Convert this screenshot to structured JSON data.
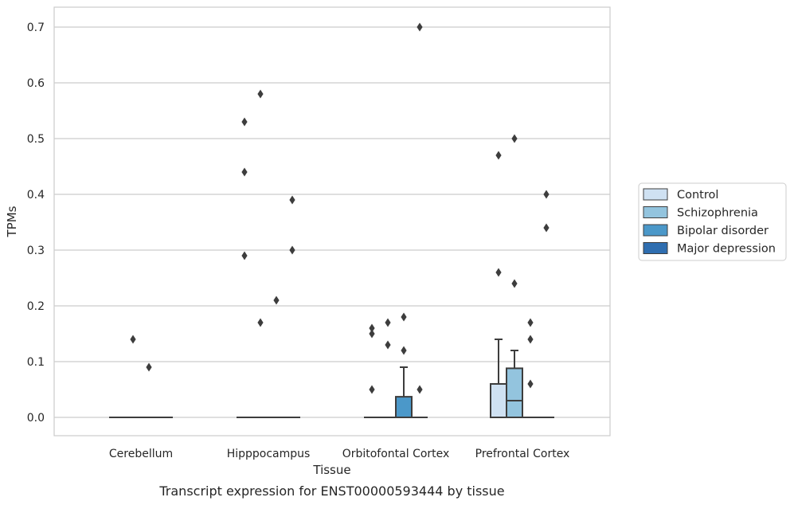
{
  "chart_data": {
    "type": "box",
    "title": "",
    "caption": "Transcript expression for ENST00000593444 by tissue",
    "xlabel": "Tissue",
    "ylabel": "TPMs",
    "ylim": [
      -0.035,
      0.735
    ],
    "yticks": [
      0.0,
      0.1,
      0.2,
      0.3,
      0.4,
      0.5,
      0.6,
      0.7
    ],
    "ytick_labels": [
      "0.0",
      "0.1",
      "0.2",
      "0.3",
      "0.4",
      "0.5",
      "0.6",
      "0.7"
    ],
    "grid": "y",
    "legend_position": "right",
    "categories": [
      "Cerebellum",
      "Hipppocampus",
      "Orbitofontal Cortex",
      "Prefrontal Cortex"
    ],
    "series": [
      {
        "name": "Control",
        "color": "#cfe1f2",
        "boxes": [
          {
            "q1": 0,
            "median": 0,
            "q3": 0,
            "whisker_low": 0,
            "whisker_high": 0,
            "outliers": []
          },
          {
            "q1": 0,
            "median": 0,
            "q3": 0,
            "whisker_low": 0,
            "whisker_high": 0,
            "outliers": [
              0.53,
              0.44,
              0.29
            ]
          },
          {
            "q1": 0,
            "median": 0,
            "q3": 0,
            "whisker_low": 0,
            "whisker_high": 0,
            "outliers": [
              0.16,
              0.15,
              0.05
            ]
          },
          {
            "q1": 0,
            "median": 0,
            "q3": 0.06,
            "whisker_low": 0,
            "whisker_high": 0.14,
            "outliers": [
              0.47,
              0.26
            ]
          }
        ]
      },
      {
        "name": "Schizophrenia",
        "color": "#93c4de",
        "boxes": [
          {
            "q1": 0,
            "median": 0,
            "q3": 0,
            "whisker_low": 0,
            "whisker_high": 0,
            "outliers": [
              0.14
            ]
          },
          {
            "q1": 0,
            "median": 0,
            "q3": 0,
            "whisker_low": 0,
            "whisker_high": 0,
            "outliers": [
              0.58,
              0.17
            ]
          },
          {
            "q1": 0,
            "median": 0,
            "q3": 0,
            "whisker_low": 0,
            "whisker_high": 0,
            "outliers": [
              0.17,
              0.13
            ]
          },
          {
            "q1": 0,
            "median": 0.03,
            "q3": 0.088,
            "whisker_low": 0,
            "whisker_high": 0.12,
            "outliers": [
              0.5,
              0.24
            ]
          }
        ]
      },
      {
        "name": "Bipolar disorder",
        "color": "#4b98c9",
        "boxes": [
          {
            "q1": 0,
            "median": 0,
            "q3": 0,
            "whisker_low": 0,
            "whisker_high": 0,
            "outliers": [
              0.09
            ]
          },
          {
            "q1": 0,
            "median": 0,
            "q3": 0,
            "whisker_low": 0,
            "whisker_high": 0,
            "outliers": [
              0.21
            ]
          },
          {
            "q1": 0,
            "median": 0,
            "q3": 0.037,
            "whisker_low": 0,
            "whisker_high": 0.09,
            "outliers": [
              0.18,
              0.12
            ]
          },
          {
            "q1": 0,
            "median": 0,
            "q3": 0,
            "whisker_low": 0,
            "whisker_high": 0,
            "outliers": [
              0.17,
              0.14,
              0.06
            ]
          }
        ]
      },
      {
        "name": "Major depression",
        "color": "#2f6eb0",
        "boxes": [
          {
            "q1": 0,
            "median": 0,
            "q3": 0,
            "whisker_low": 0,
            "whisker_high": 0,
            "outliers": []
          },
          {
            "q1": 0,
            "median": 0,
            "q3": 0,
            "whisker_low": 0,
            "whisker_high": 0,
            "outliers": [
              0.39,
              0.3
            ]
          },
          {
            "q1": 0,
            "median": 0,
            "q3": 0,
            "whisker_low": 0,
            "whisker_high": 0,
            "outliers": [
              0.7,
              0.05
            ]
          },
          {
            "q1": 0,
            "median": 0,
            "q3": 0,
            "whisker_low": 0,
            "whisker_high": 0,
            "outliers": [
              0.4,
              0.34
            ]
          }
        ]
      }
    ]
  }
}
